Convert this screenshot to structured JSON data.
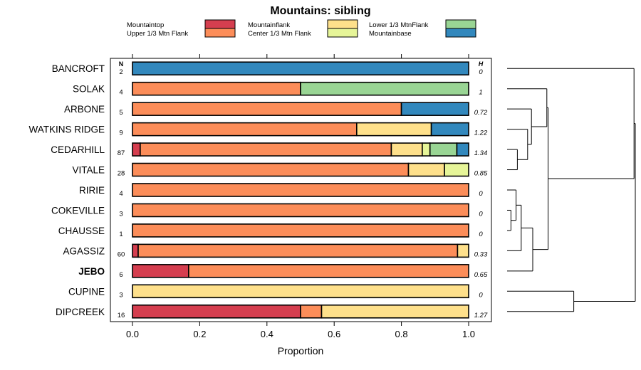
{
  "chart_data": {
    "type": "bar",
    "orientation": "horizontal",
    "stacked": true,
    "title": "Mountains: sibling",
    "xlabel": "Proportion",
    "ylabel": "",
    "xlim": [
      0,
      1
    ],
    "x_ticks": [
      "0.0",
      "0.2",
      "0.4",
      "0.6",
      "0.8",
      "1.0"
    ],
    "n_header": "N",
    "h_header": "H",
    "legend_position": "top",
    "legend": [
      {
        "name": "Mountaintop",
        "color": "#d53e4f"
      },
      {
        "name": "Upper 1/3 Mtn Flank",
        "color": "#fc8d59"
      },
      {
        "name": "Mountainflank",
        "color": "#fee08b"
      },
      {
        "name": "Center 1/3 Mtn Flank",
        "color": "#e6f598"
      },
      {
        "name": "Lower 1/3 MtnFlank",
        "color": "#99d594"
      },
      {
        "name": "Mountainbase",
        "color": "#3288bd"
      }
    ],
    "categories": [
      "BANCROFT",
      "SOLAK",
      "ARBONE",
      "WATKINS RIDGE",
      "CEDARHILL",
      "VITALE",
      "RIRIE",
      "COKEVILLE",
      "CHAUSSE",
      "AGASSIZ",
      "JEBO",
      "CUPINE",
      "DIPCREEK"
    ],
    "highlight": "JEBO",
    "n": [
      "2",
      "4",
      "5",
      "9",
      "87",
      "28",
      "4",
      "3",
      "1",
      "60",
      "6",
      "3",
      "16"
    ],
    "h": [
      "0",
      "1",
      "0.72",
      "1.22",
      "1.34",
      "0.85",
      "0",
      "0",
      "0",
      "0.33",
      "0.65",
      "0",
      "1.27"
    ],
    "segments": [
      [
        {
          "class": 5,
          "value": 1.0
        }
      ],
      [
        {
          "class": 1,
          "value": 0.5
        },
        {
          "class": 4,
          "value": 0.5
        }
      ],
      [
        {
          "class": 1,
          "value": 0.8
        },
        {
          "class": 5,
          "value": 0.2
        }
      ],
      [
        {
          "class": 1,
          "value": 0.667
        },
        {
          "class": 2,
          "value": 0.222
        },
        {
          "class": 5,
          "value": 0.111
        }
      ],
      [
        {
          "class": 0,
          "value": 0.023
        },
        {
          "class": 1,
          "value": 0.747
        },
        {
          "class": 2,
          "value": 0.092
        },
        {
          "class": 3,
          "value": 0.023
        },
        {
          "class": 4,
          "value": 0.08
        },
        {
          "class": 5,
          "value": 0.035
        }
      ],
      [
        {
          "class": 1,
          "value": 0.821
        },
        {
          "class": 2,
          "value": 0.107
        },
        {
          "class": 3,
          "value": 0.072
        }
      ],
      [
        {
          "class": 1,
          "value": 1.0
        }
      ],
      [
        {
          "class": 1,
          "value": 1.0
        }
      ],
      [
        {
          "class": 1,
          "value": 1.0
        }
      ],
      [
        {
          "class": 0,
          "value": 0.017
        },
        {
          "class": 1,
          "value": 0.95
        },
        {
          "class": 2,
          "value": 0.033
        }
      ],
      [
        {
          "class": 0,
          "value": 0.167
        },
        {
          "class": 1,
          "value": 0.833
        }
      ],
      [
        {
          "class": 2,
          "value": 1.0
        }
      ],
      [
        {
          "class": 0,
          "value": 0.5
        },
        {
          "class": 1,
          "value": 0.0625
        },
        {
          "class": 2,
          "value": 0.4375
        }
      ]
    ],
    "dendrogram": "hierarchical clustering of site compositions"
  }
}
